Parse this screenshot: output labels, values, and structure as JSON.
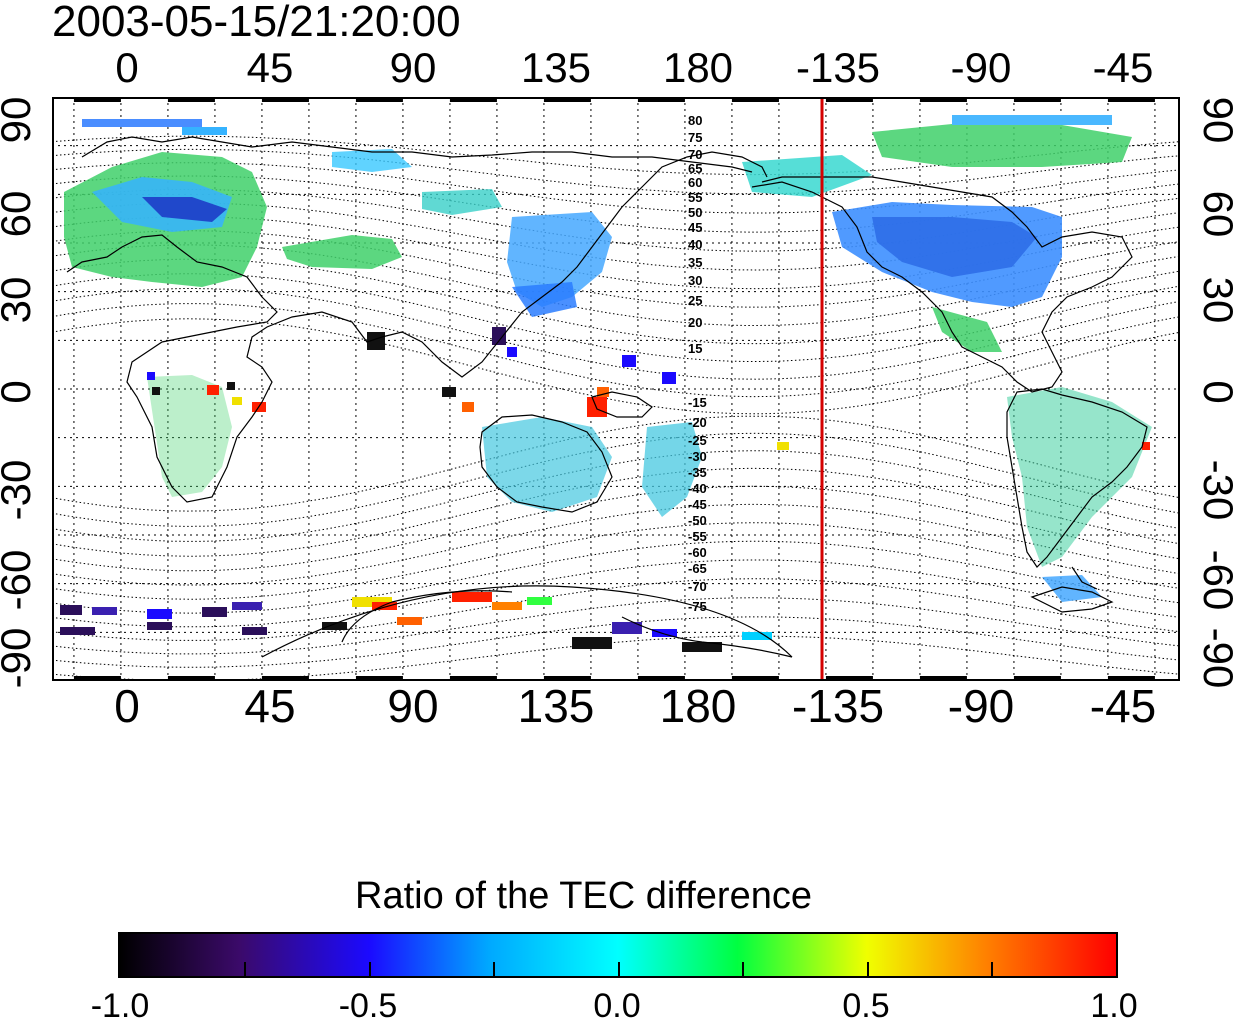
{
  "timestamp": "2003-05-15/21:20:00",
  "axes": {
    "top_ticks": [
      "0",
      "45",
      "90",
      "135",
      "180",
      "-135",
      "-90",
      "-45"
    ],
    "bottom_ticks": [
      "0",
      "45",
      "90",
      "135",
      "180",
      "-135",
      "-90",
      "-45"
    ],
    "left_ticks": [
      "90",
      "60",
      "30",
      "0",
      "-30",
      "-60",
      "-90"
    ],
    "right_ticks": [
      "90",
      "60",
      "30",
      "0",
      "-30",
      "-60",
      "-90"
    ]
  },
  "map": {
    "projection": "cylindrical equidistant",
    "lon_range": [
      -22,
      338
    ],
    "lat_range": [
      -90,
      90
    ],
    "grid": "dotted every 15 degrees",
    "contour_labels_north": [
      "80",
      "75",
      "70",
      "65",
      "60",
      "55",
      "50",
      "45",
      "40",
      "35",
      "30",
      "25",
      "20",
      "15"
    ],
    "contour_labels_south": [
      "-15",
      "-20",
      "-25",
      "-30",
      "-35",
      "-40",
      "-45",
      "-50",
      "-55",
      "-60",
      "-65",
      "-70",
      "-75"
    ],
    "marker_line_longitude": -142,
    "marker_line_color": "#d40000"
  },
  "colorbar": {
    "title": "Ratio of the TEC difference",
    "min": -1.0,
    "max": 1.0,
    "tick_labels": [
      "-1.0",
      "-0.5",
      "0.0",
      "0.5",
      "1.0"
    ],
    "colors": [
      "#000000",
      "#3b0a6a",
      "#1b0aff",
      "#00a8ff",
      "#00ffff",
      "#00ff40",
      "#f0ff00",
      "#ff8000",
      "#ff0000"
    ]
  }
}
